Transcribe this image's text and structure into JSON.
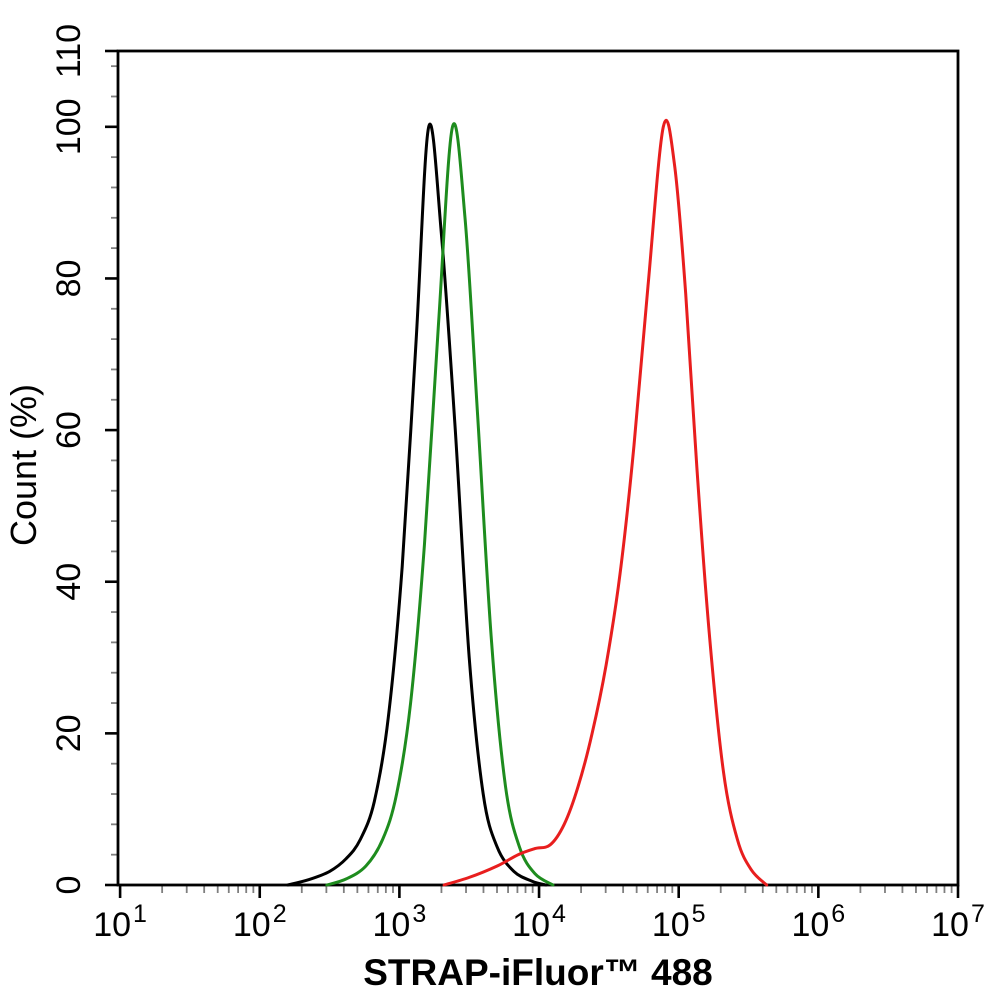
{
  "figure": {
    "background": "#ffffff",
    "frame_color": "#000000",
    "minor_tick_color": "#7f7f7f"
  },
  "chart_data": {
    "type": "line",
    "chart_kind": "flow-cytometry-overlay-histogram",
    "title": "",
    "xlabel": "STRAP-iFluor™ 488",
    "ylabel": "Count  (%)",
    "x_scale": "log10",
    "x_tick_base": "10",
    "x_tick_exponents": [
      "1",
      "2",
      "3",
      "4",
      "5",
      "6",
      "7"
    ],
    "x_decades": [
      1,
      2,
      3,
      4,
      5,
      6,
      7
    ],
    "xlim_log": [
      0.985,
      7.0
    ],
    "ylim": [
      0,
      110
    ],
    "y_major_ticks": [
      0,
      20,
      40,
      60,
      80,
      100,
      110
    ],
    "y_tick_labels": [
      "0",
      "20",
      "40",
      "60",
      "80",
      "100",
      "110"
    ],
    "y_minor_step": 4,
    "grid": false,
    "legend": "none",
    "peak_estimates": [
      {
        "series": "black",
        "x": 1600,
        "y_percent": 100
      },
      {
        "series": "green",
        "x": 2400,
        "y_percent": 100
      },
      {
        "series": "red",
        "x": 78000,
        "y_percent": 100
      }
    ],
    "series": [
      {
        "name": "black",
        "color": "#000000",
        "points": [
          [
            2.2,
            0
          ],
          [
            2.35,
            0.7
          ],
          [
            2.5,
            1.8
          ],
          [
            2.62,
            3.5
          ],
          [
            2.72,
            6
          ],
          [
            2.82,
            11
          ],
          [
            2.92,
            22
          ],
          [
            3.02,
            42
          ],
          [
            3.12,
            72
          ],
          [
            3.21,
            100
          ],
          [
            3.3,
            86
          ],
          [
            3.4,
            60
          ],
          [
            3.5,
            30
          ],
          [
            3.6,
            12
          ],
          [
            3.7,
            5
          ],
          [
            3.82,
            1.8
          ],
          [
            3.95,
            0.5
          ],
          [
            4.05,
            0
          ]
        ]
      },
      {
        "name": "green",
        "color": "#1e8c1e",
        "points": [
          [
            2.48,
            0
          ],
          [
            2.62,
            0.8
          ],
          [
            2.76,
            2.5
          ],
          [
            2.88,
            6
          ],
          [
            2.98,
            12
          ],
          [
            3.08,
            24
          ],
          [
            3.18,
            45
          ],
          [
            3.28,
            74
          ],
          [
            3.38,
            100
          ],
          [
            3.47,
            88
          ],
          [
            3.56,
            62
          ],
          [
            3.66,
            32
          ],
          [
            3.76,
            13
          ],
          [
            3.86,
            5
          ],
          [
            3.97,
            1.5
          ],
          [
            4.1,
            0
          ]
        ]
      },
      {
        "name": "red",
        "color": "#e81e1e",
        "points": [
          [
            3.32,
            0
          ],
          [
            3.5,
            1
          ],
          [
            3.7,
            2.5
          ],
          [
            3.85,
            4
          ],
          [
            3.97,
            4.8
          ],
          [
            4.08,
            5.3
          ],
          [
            4.18,
            8
          ],
          [
            4.28,
            13
          ],
          [
            4.38,
            20
          ],
          [
            4.48,
            29
          ],
          [
            4.58,
            41
          ],
          [
            4.68,
            58
          ],
          [
            4.78,
            79
          ],
          [
            4.89,
            100
          ],
          [
            4.97,
            95
          ],
          [
            5.05,
            78
          ],
          [
            5.13,
            55
          ],
          [
            5.22,
            33
          ],
          [
            5.32,
            15
          ],
          [
            5.42,
            6
          ],
          [
            5.52,
            2
          ],
          [
            5.63,
            0
          ]
        ]
      }
    ]
  }
}
